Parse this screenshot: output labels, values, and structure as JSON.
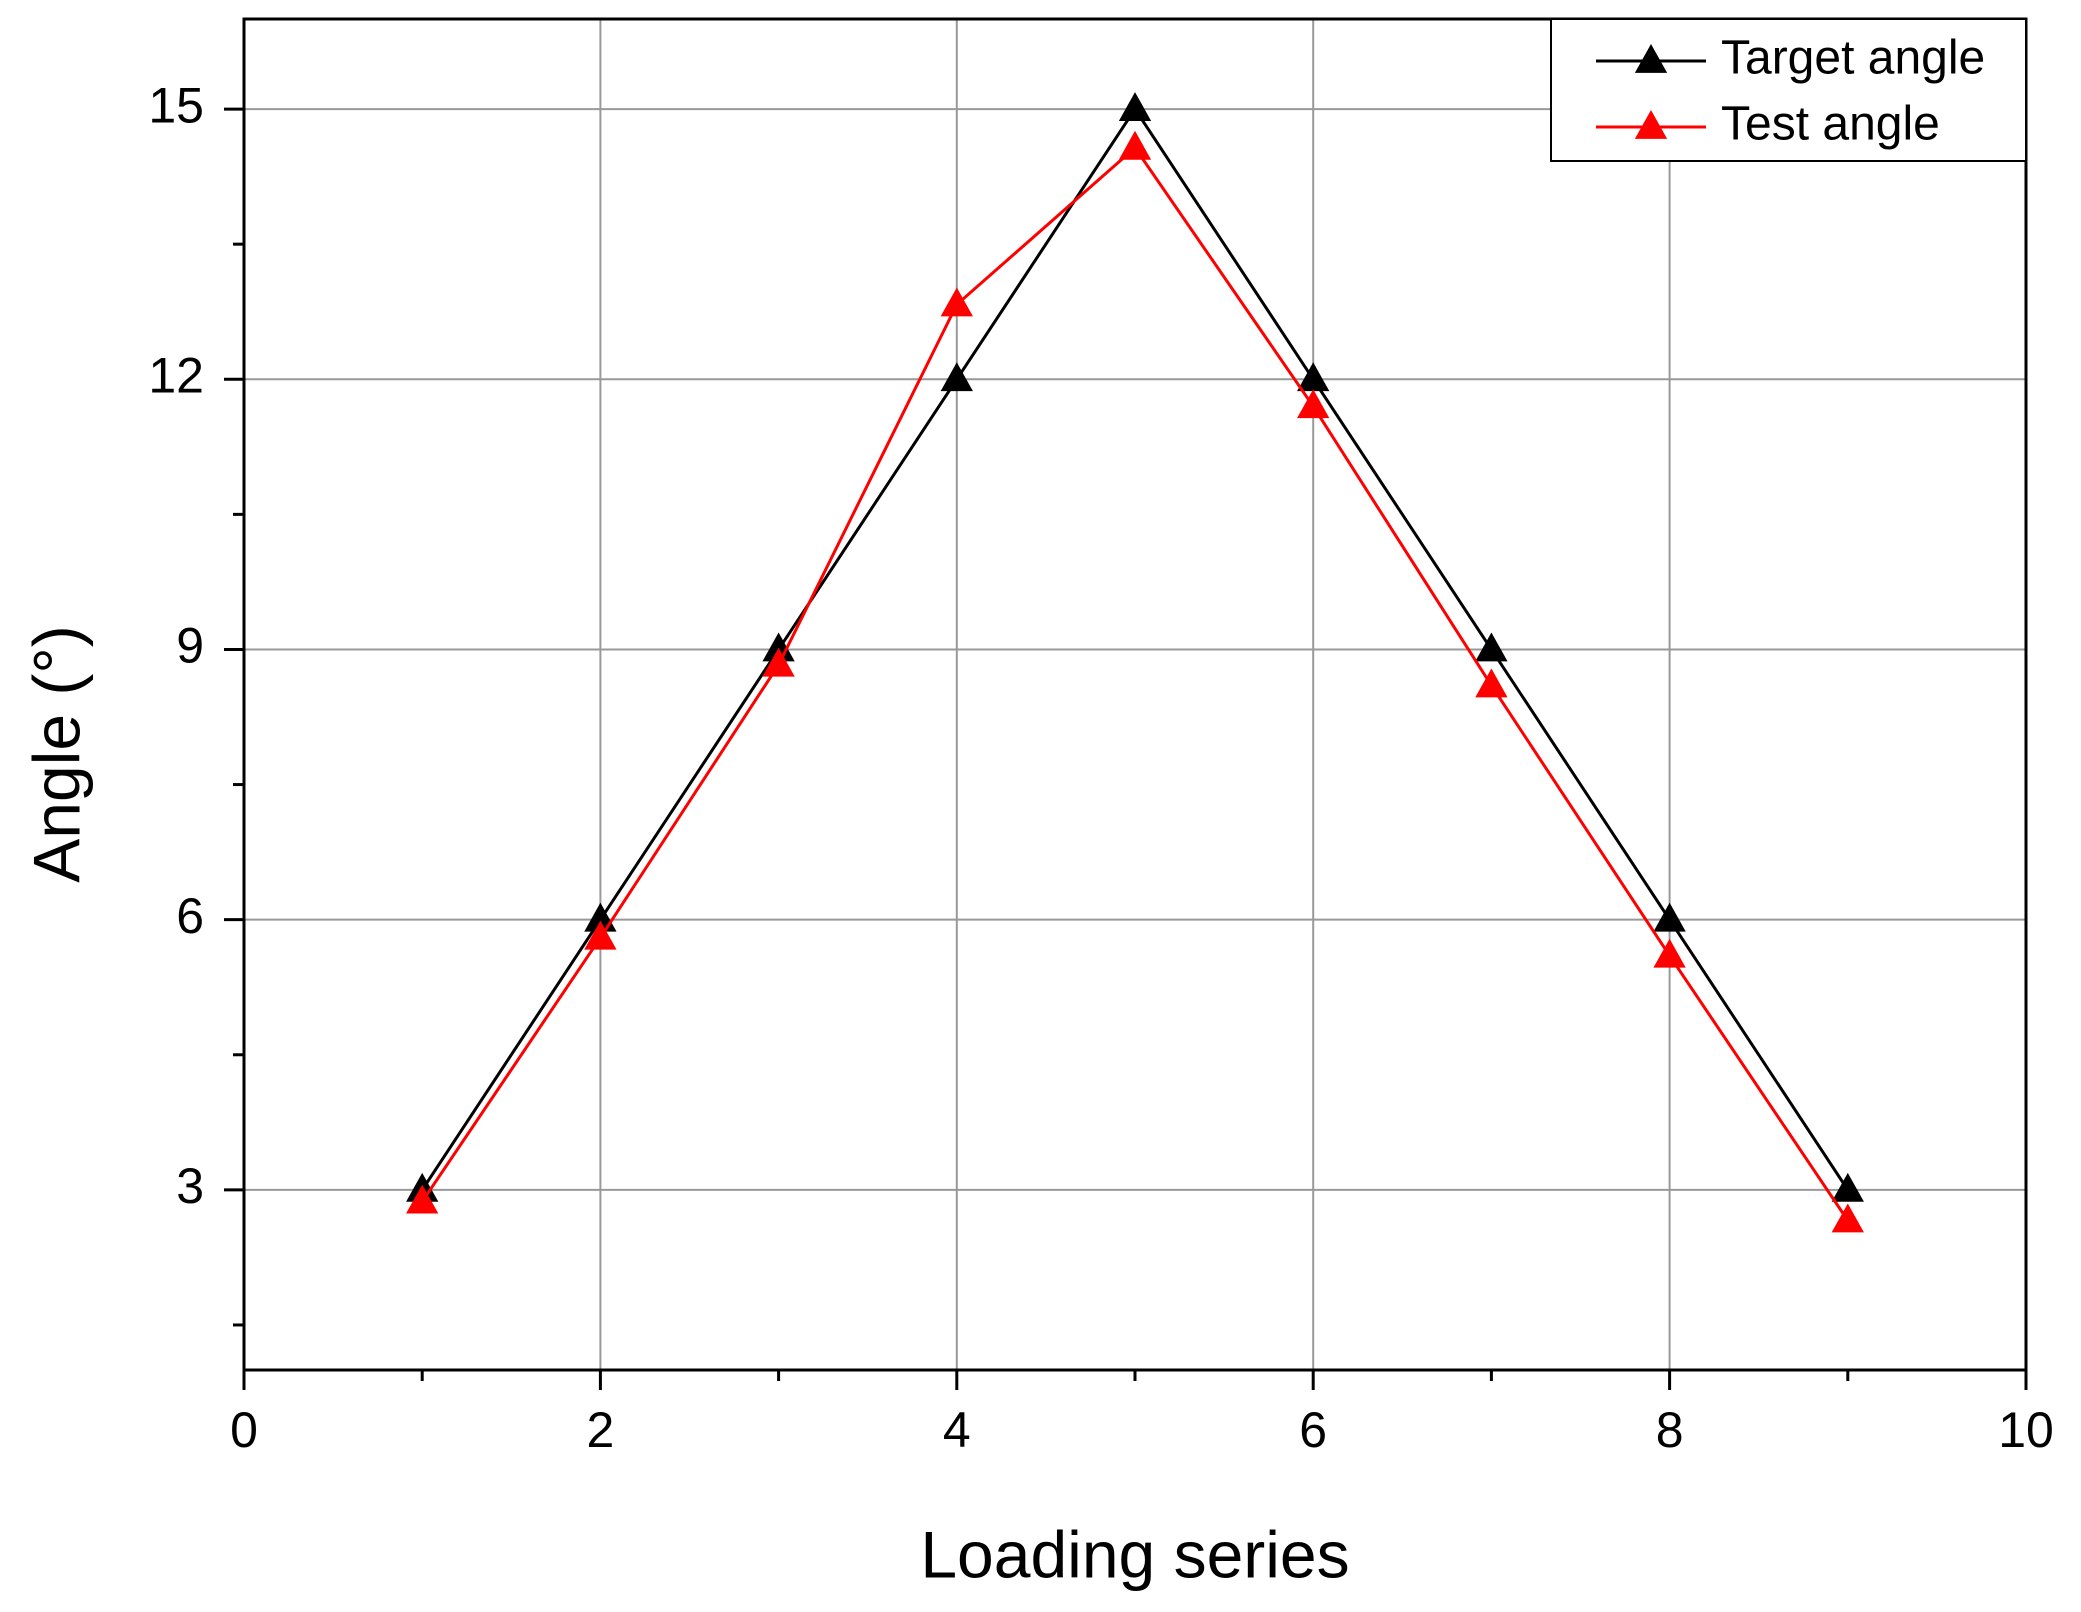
{
  "chart_data": {
    "type": "line",
    "x_label": "Loading series",
    "y_label": "Angle (°)",
    "x": [
      1,
      2,
      3,
      4,
      5,
      6,
      7,
      8,
      9
    ],
    "series": [
      {
        "name": "Target angle",
        "color": "#000000",
        "values": [
          3,
          6,
          9,
          12,
          15,
          12,
          9,
          6,
          3
        ]
      },
      {
        "name": "Test angle",
        "color": "#ff0000",
        "values": [
          2.87,
          5.8,
          8.83,
          12.83,
          14.57,
          11.7,
          8.6,
          5.6,
          2.66
        ]
      }
    ],
    "xlim": [
      0,
      10
    ],
    "xticks": [
      0,
      2,
      4,
      6,
      8,
      10
    ],
    "ylim": [
      1,
      16
    ],
    "yticks": [
      3,
      6,
      9,
      12,
      15
    ],
    "grid": true,
    "legend_position": "upper right",
    "marker": "triangle"
  }
}
